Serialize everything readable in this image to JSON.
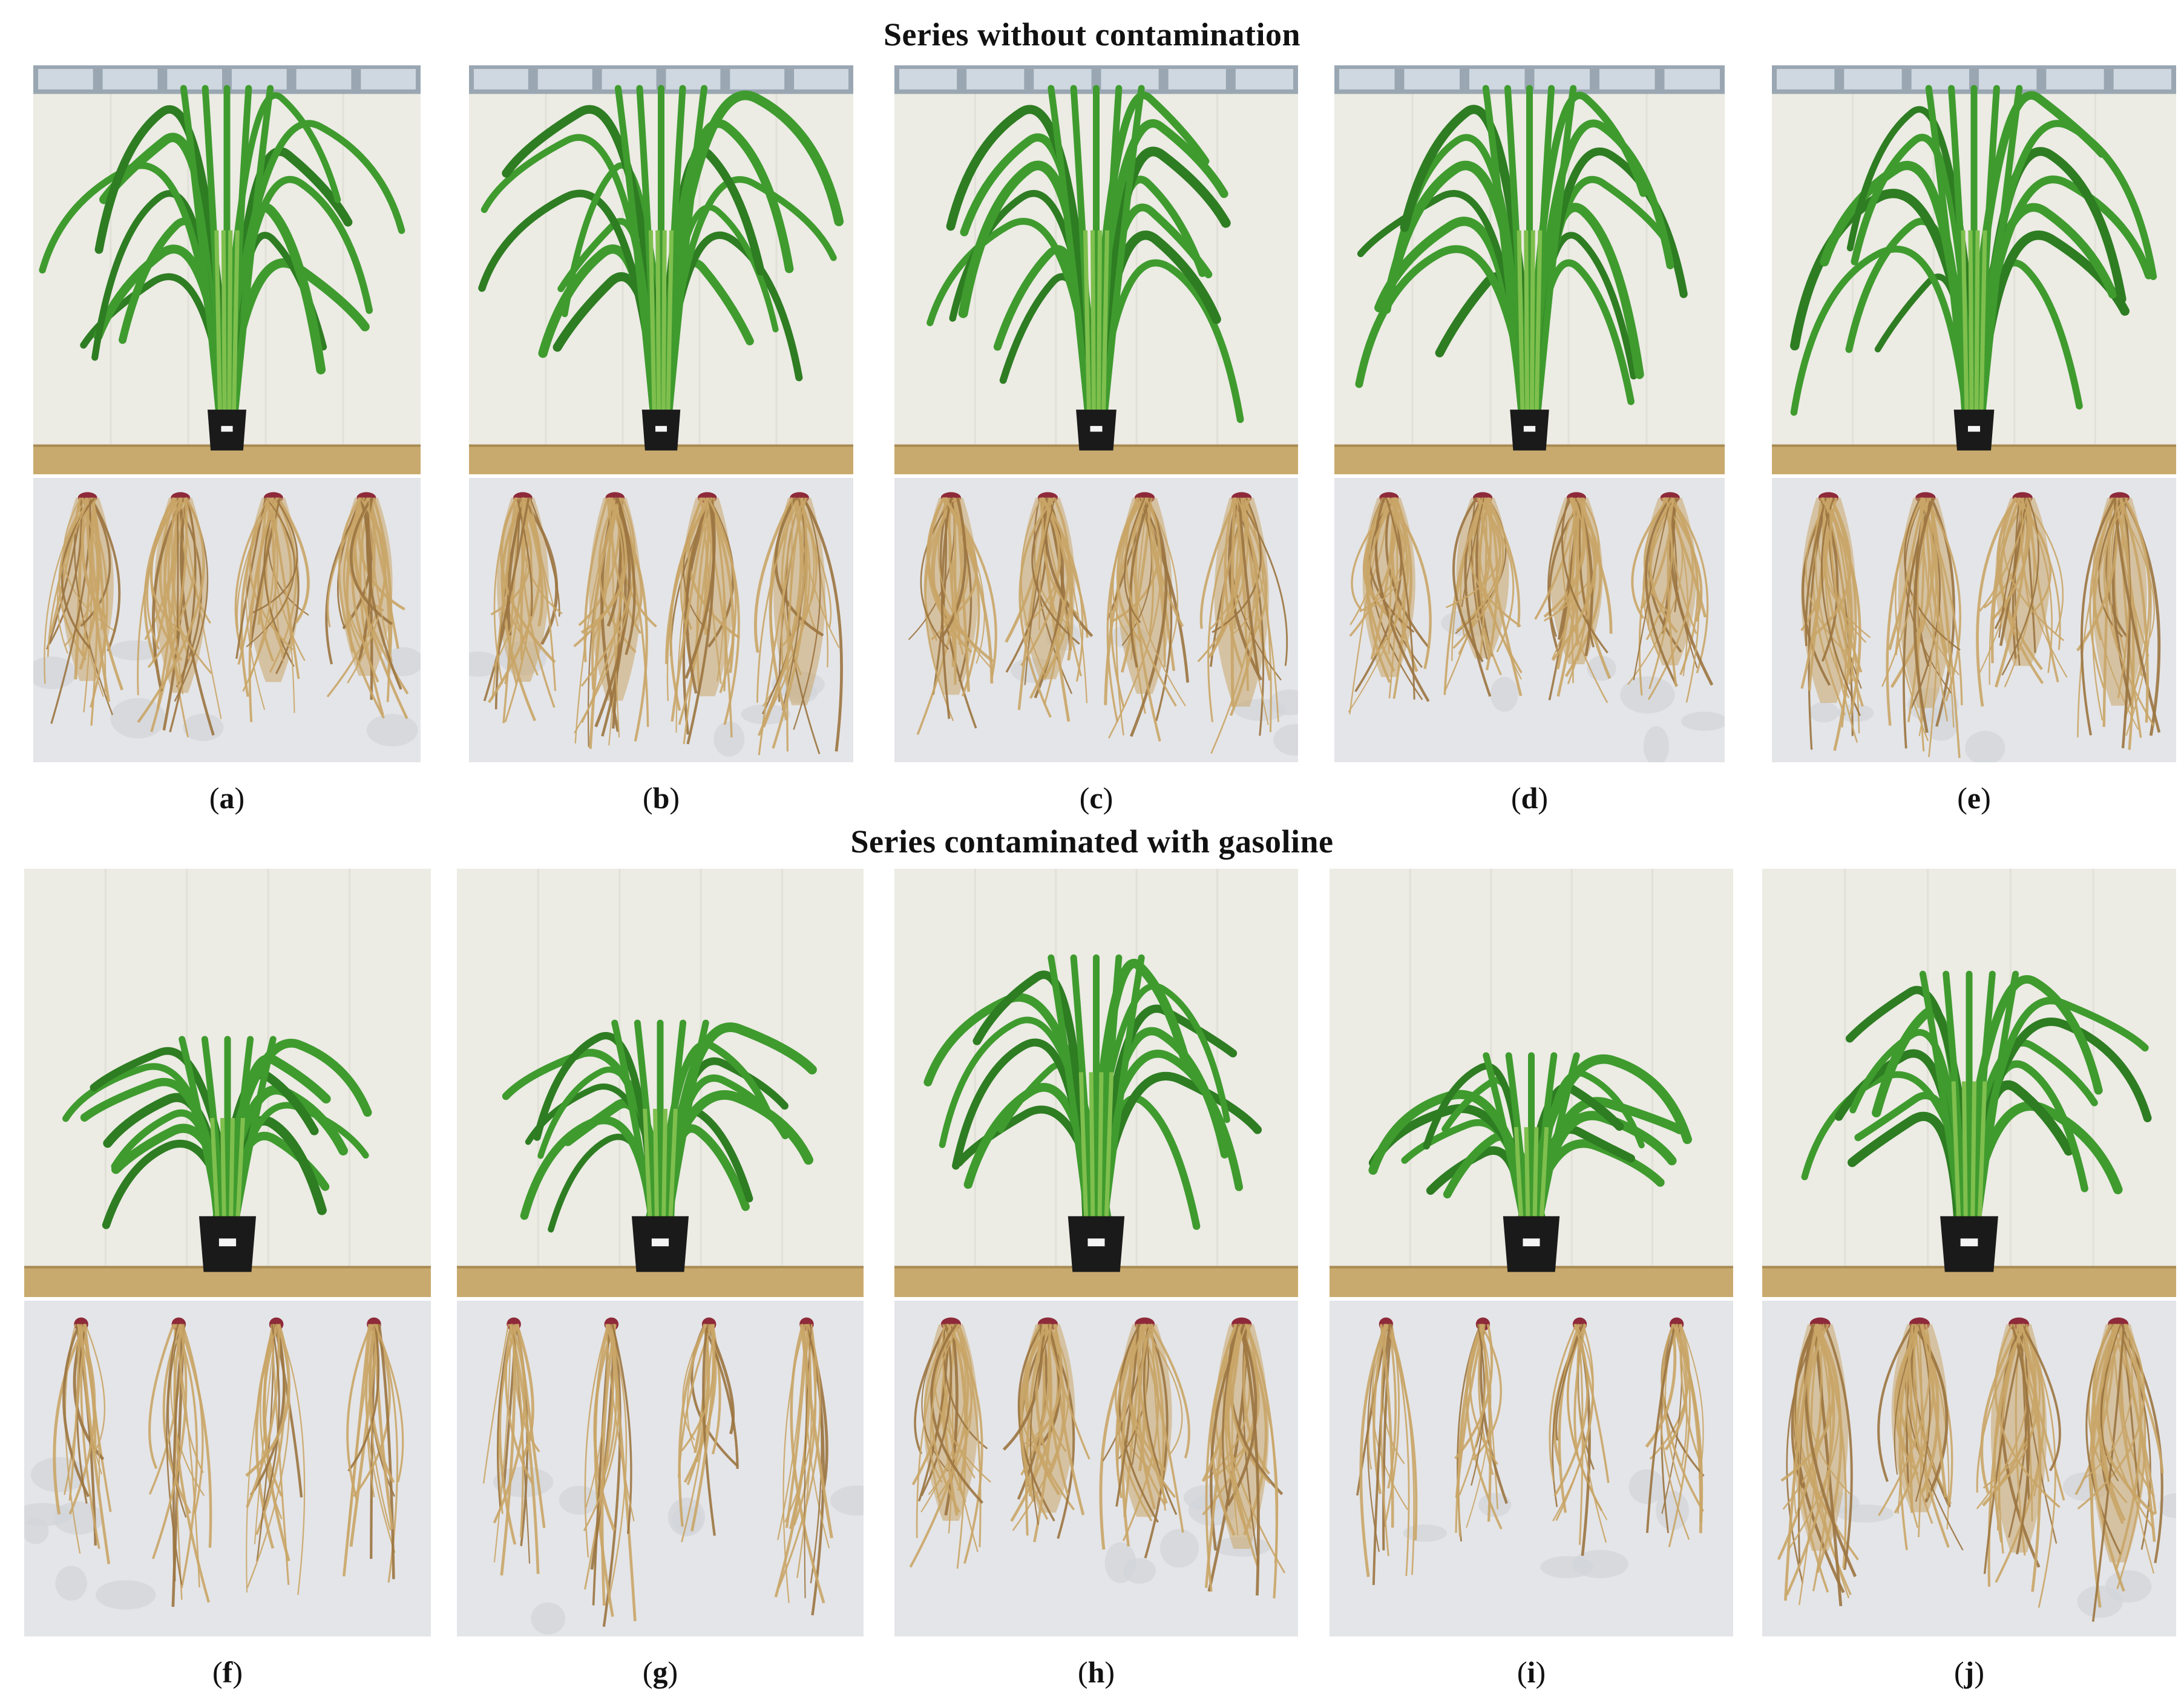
{
  "titles": {
    "top": "Series without contamination",
    "bottom": "Series contaminated with gasoline"
  },
  "panels": [
    {
      "id": "a",
      "letter": "a",
      "series": "top",
      "shoot_vigor": 1.0,
      "pot": "small"
    },
    {
      "id": "b",
      "letter": "b",
      "series": "top",
      "shoot_vigor": 1.0,
      "pot": "small"
    },
    {
      "id": "c",
      "letter": "c",
      "series": "top",
      "shoot_vigor": 1.0,
      "pot": "small"
    },
    {
      "id": "d",
      "letter": "d",
      "series": "top",
      "shoot_vigor": 1.0,
      "pot": "small"
    },
    {
      "id": "e",
      "letter": "e",
      "series": "top",
      "shoot_vigor": 1.0,
      "pot": "small"
    },
    {
      "id": "f",
      "letter": "f",
      "series": "bottom",
      "shoot_vigor": 0.55,
      "pot": "large"
    },
    {
      "id": "g",
      "letter": "g",
      "series": "bottom",
      "shoot_vigor": 0.6,
      "pot": "large"
    },
    {
      "id": "h",
      "letter": "h",
      "series": "bottom",
      "shoot_vigor": 0.8,
      "pot": "large"
    },
    {
      "id": "i",
      "letter": "i",
      "series": "bottom",
      "shoot_vigor": 0.5,
      "pot": "large"
    },
    {
      "id": "j",
      "letter": "j",
      "series": "bottom",
      "shoot_vigor": 0.75,
      "pot": "large"
    }
  ],
  "colors": {
    "wall": "#ecebe4",
    "window": "#9aa7b3",
    "shelf": "#c9aa6e",
    "leaf": "#3f9b2e",
    "leaf_dark": "#2e7d22",
    "pot": "#1a1a1a",
    "root_bg": "#e4e5e8",
    "root": "#c9a567",
    "root_dark": "#9b7440",
    "crown": "#8e2a3a"
  }
}
